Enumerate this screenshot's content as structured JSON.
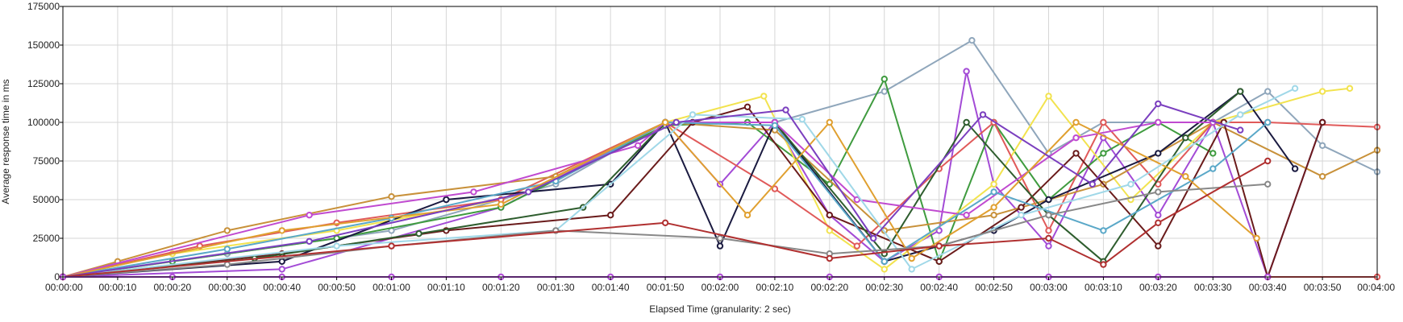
{
  "chart_data": {
    "type": "line",
    "xlabel": "Elapsed Time (granularity: 2 sec)",
    "ylabel": "Average response time in ms",
    "xlim": [
      "00:00:00",
      "00:04:00"
    ],
    "ylim": [
      0,
      175000
    ],
    "grid": true,
    "legend": "none",
    "yticks": [
      0,
      25000,
      50000,
      75000,
      100000,
      125000,
      150000,
      175000
    ],
    "xticks": [
      "00:00:00",
      "00:00:10",
      "00:00:20",
      "00:00:30",
      "00:00:40",
      "00:00:50",
      "00:01:00",
      "00:01:10",
      "00:01:20",
      "00:01:30",
      "00:01:40",
      "00:01:50",
      "00:02:00",
      "00:02:10",
      "00:02:20",
      "00:02:30",
      "00:02:40",
      "00:02:50",
      "00:03:00",
      "00:03:10",
      "00:03:20",
      "00:03:30",
      "00:03:40",
      "00:03:50",
      "00:04:00"
    ],
    "series": [
      {
        "color": "#a34bd6",
        "x": [
          "00:00:00",
          "00:00:40",
          "00:01:20",
          "00:01:50",
          "00:02:00",
          "00:02:10",
          "00:02:20",
          "00:02:30",
          "00:02:40",
          "00:02:45",
          "00:02:50",
          "00:03:00",
          "00:03:10",
          "00:03:20",
          "00:03:30",
          "00:03:40",
          "00:03:50"
        ],
        "y": [
          0,
          5000,
          45000,
          100000,
          60000,
          100000,
          40000,
          10000,
          30000,
          133000,
          60000,
          20000,
          90000,
          40000,
          100000,
          0,
          100000
        ]
      },
      {
        "color": "#8fa6bb",
        "x": [
          "00:00:00",
          "00:00:30",
          "00:01:00",
          "00:01:30",
          "00:01:50",
          "00:02:10",
          "00:02:30",
          "00:02:46",
          "00:03:00",
          "00:03:10",
          "00:03:30",
          "00:03:40",
          "00:03:50",
          "00:04:00"
        ],
        "y": [
          0,
          15000,
          30000,
          60000,
          100000,
          100000,
          120000,
          153000,
          80000,
          100000,
          100000,
          120000,
          85000,
          68000
        ]
      },
      {
        "color": "#3f9b3f",
        "x": [
          "00:00:00",
          "00:00:20",
          "00:00:50",
          "00:01:20",
          "00:01:50",
          "00:02:05",
          "00:02:20",
          "00:02:30",
          "00:02:40",
          "00:02:50",
          "00:03:00",
          "00:03:10",
          "00:03:20",
          "00:03:30"
        ],
        "y": [
          0,
          10000,
          25000,
          45000,
          98000,
          100000,
          60000,
          128000,
          10000,
          100000,
          50000,
          80000,
          100000,
          80000
        ]
      },
      {
        "color": "#f2e34f",
        "x": [
          "00:00:00",
          "00:00:20",
          "00:00:50",
          "00:01:20",
          "00:01:50",
          "00:02:08",
          "00:02:20",
          "00:02:30",
          "00:02:50",
          "00:03:00",
          "00:03:15",
          "00:03:30",
          "00:03:50",
          "00:03:55"
        ],
        "y": [
          0,
          15000,
          30000,
          50000,
          100000,
          117000,
          30000,
          5000,
          60000,
          117000,
          50000,
          100000,
          120000,
          122000
        ]
      },
      {
        "color": "#e05a5a",
        "x": [
          "00:00:00",
          "00:00:25",
          "00:00:50",
          "00:01:20",
          "00:01:50",
          "00:02:10",
          "00:02:25",
          "00:02:40",
          "00:02:50",
          "00:03:00",
          "00:03:10",
          "00:03:20",
          "00:03:30",
          "00:03:40",
          "00:04:00"
        ],
        "y": [
          0,
          20000,
          35000,
          50000,
          100000,
          57000,
          20000,
          70000,
          100000,
          30000,
          100000,
          60000,
          100000,
          100000,
          97000
        ]
      },
      {
        "color": "#c8913a",
        "x": [
          "00:00:00",
          "00:00:10",
          "00:00:30",
          "00:01:00",
          "00:01:30",
          "00:01:50",
          "00:02:10",
          "00:02:30",
          "00:02:50",
          "00:03:10",
          "00:03:30",
          "00:03:50",
          "00:04:00"
        ],
        "y": [
          0,
          10000,
          30000,
          52000,
          65000,
          100000,
          95000,
          30000,
          40000,
          60000,
          100000,
          65000,
          82000
        ]
      },
      {
        "color": "#1a1a40",
        "x": [
          "00:00:00",
          "00:00:40",
          "00:01:10",
          "00:01:40",
          "00:01:50",
          "00:02:00",
          "00:02:10",
          "00:02:30",
          "00:02:50",
          "00:03:00",
          "00:03:20",
          "00:03:35",
          "00:03:45"
        ],
        "y": [
          0,
          10000,
          50000,
          60000,
          100000,
          20000,
          100000,
          10000,
          30000,
          50000,
          80000,
          120000,
          70000
        ]
      },
      {
        "color": "#6a1b1b",
        "x": [
          "00:00:00",
          "00:00:40",
          "00:01:10",
          "00:01:40",
          "00:01:55",
          "00:02:05",
          "00:02:20",
          "00:02:40",
          "00:02:55",
          "00:03:05",
          "00:03:20",
          "00:03:32",
          "00:03:40",
          "00:03:50"
        ],
        "y": [
          0,
          15000,
          30000,
          40000,
          100000,
          110000,
          40000,
          10000,
          45000,
          80000,
          20000,
          100000,
          0,
          100000
        ]
      },
      {
        "color": "#2e5d2e",
        "x": [
          "00:00:00",
          "00:00:35",
          "00:01:05",
          "00:01:35",
          "00:01:50",
          "00:02:10",
          "00:02:30",
          "00:02:45",
          "00:03:00",
          "00:03:10",
          "00:03:25",
          "00:03:35"
        ],
        "y": [
          0,
          12000,
          28000,
          45000,
          100000,
          100000,
          15000,
          100000,
          40000,
          10000,
          90000,
          120000
        ]
      },
      {
        "color": "#c04ad0",
        "x": [
          "00:00:00",
          "00:00:45",
          "00:01:15",
          "00:01:45",
          "00:01:50",
          "00:02:10",
          "00:02:25",
          "00:02:45",
          "00:03:05",
          "00:03:20",
          "00:03:30"
        ],
        "y": [
          0,
          40000,
          55000,
          85000,
          100000,
          100000,
          50000,
          40000,
          90000,
          100000,
          100000
        ]
      },
      {
        "color": "#5aa8c8",
        "x": [
          "00:00:00",
          "00:00:30",
          "00:01:00",
          "00:01:30",
          "00:01:50",
          "00:02:10",
          "00:02:30",
          "00:02:50",
          "00:03:10",
          "00:03:30",
          "00:03:40"
        ],
        "y": [
          0,
          18000,
          38000,
          62000,
          100000,
          98000,
          10000,
          55000,
          30000,
          70000,
          100000
        ]
      },
      {
        "color": "#e0a030",
        "x": [
          "00:00:00",
          "00:00:40",
          "00:01:20",
          "00:01:50",
          "00:02:05",
          "00:02:20",
          "00:02:35",
          "00:02:50",
          "00:03:05",
          "00:03:25",
          "00:03:38"
        ],
        "y": [
          0,
          30000,
          47000,
          100000,
          40000,
          100000,
          12000,
          45000,
          100000,
          65000,
          25000
        ]
      },
      {
        "color": "#a0d8e8",
        "x": [
          "00:00:00",
          "00:00:50",
          "00:01:30",
          "00:01:55",
          "00:02:15",
          "00:02:35",
          "00:02:55",
          "00:03:15",
          "00:03:35",
          "00:03:45"
        ],
        "y": [
          0,
          20000,
          30000,
          105000,
          102000,
          5000,
          40000,
          60000,
          105000,
          122000
        ]
      },
      {
        "color": "#7b3fbf",
        "x": [
          "00:00:00",
          "00:00:45",
          "00:01:25",
          "00:01:52",
          "00:02:12",
          "00:02:28",
          "00:02:48",
          "00:03:08",
          "00:03:20",
          "00:03:35"
        ],
        "y": [
          0,
          23000,
          55000,
          100000,
          108000,
          25000,
          105000,
          60000,
          112000,
          95000
        ]
      },
      {
        "color": "#888888",
        "x": [
          "00:00:00",
          "00:00:30",
          "00:01:00",
          "00:01:30",
          "00:02:00",
          "00:02:20",
          "00:02:40",
          "00:03:00",
          "00:03:20",
          "00:03:40"
        ],
        "y": [
          0,
          8000,
          20000,
          30000,
          25000,
          15000,
          20000,
          40000,
          55000,
          60000
        ]
      },
      {
        "color": "#b03030",
        "x": [
          "00:00:00",
          "00:01:00",
          "00:01:50",
          "00:02:20",
          "00:02:40",
          "00:03:00",
          "00:03:10",
          "00:03:20",
          "00:03:40"
        ],
        "y": [
          0,
          20000,
          35000,
          12000,
          20000,
          25000,
          8000,
          35000,
          75000
        ]
      },
      {
        "color": "#e05a5a",
        "x": [
          "00:00:00",
          "00:03:40",
          "00:04:00"
        ],
        "y": [
          0,
          0,
          0
        ]
      },
      {
        "color": "#b04ad8",
        "x": [
          "00:00:00",
          "00:00:20",
          "00:00:40",
          "00:01:00",
          "00:01:20",
          "00:01:40",
          "00:02:00",
          "00:02:20",
          "00:02:40",
          "00:03:00",
          "00:03:20",
          "00:03:40"
        ],
        "y": [
          0,
          0,
          0,
          0,
          0,
          0,
          0,
          0,
          0,
          0,
          0,
          0
        ]
      }
    ]
  }
}
